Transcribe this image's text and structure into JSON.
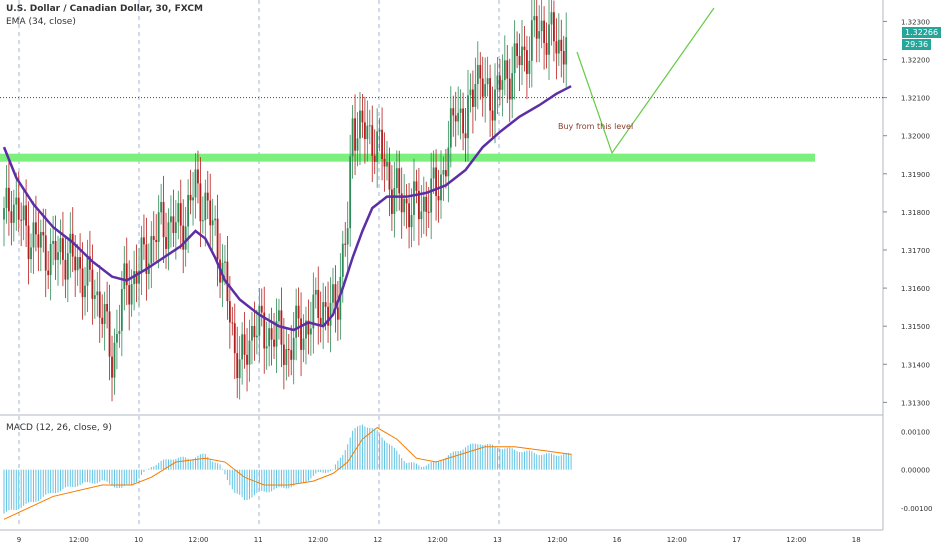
{
  "header": {
    "title": "U.S. Dollar / Canadian Dollar, 30, FXCM",
    "indicator": "EMA (34, close)",
    "macd_title": "MACD (12, 26, close, 9)"
  },
  "last_price": {
    "value": "1.32266",
    "countdown": "29:36",
    "color": "#26a69a"
  },
  "colors": {
    "up": "#2e8b57",
    "down": "#b71c1c",
    "ema": "#5b2ea6",
    "zone": "#7cf07c",
    "projection": "#66cc44",
    "macd_hist": "#5fc3e4",
    "signal": "#f57c00",
    "grid": "#cfd8e3"
  },
  "chart_data": [
    {
      "type": "candlestick",
      "title": "U.S. Dollar / Canadian Dollar, 30, FXCM",
      "ylim": [
        1.3128,
        1.3233
      ],
      "y_ticks": [
        "1.32300",
        "1.32200",
        "1.32100",
        "1.32000",
        "1.31900",
        "1.31800",
        "1.31700",
        "1.31600",
        "1.31500",
        "1.31400",
        "1.31300"
      ],
      "x_ticks": [
        "9",
        "12:00",
        "10",
        "12:00",
        "11",
        "12:00",
        "12",
        "12:00",
        "13",
        "12:00",
        "16",
        "12:00",
        "17",
        "12:00",
        "18"
      ],
      "ema": {
        "name": "EMA (34, close)",
        "points": [
          [
            0,
            1.3197
          ],
          [
            5,
            1.3189
          ],
          [
            12,
            1.3182
          ],
          [
            20,
            1.3176
          ],
          [
            28,
            1.3172
          ],
          [
            36,
            1.3167
          ],
          [
            44,
            1.3163
          ],
          [
            50,
            1.3162
          ],
          [
            58,
            1.3165
          ],
          [
            65,
            1.3168
          ],
          [
            72,
            1.3171
          ],
          [
            78,
            1.3175
          ],
          [
            82,
            1.3173
          ],
          [
            86,
            1.3168
          ],
          [
            90,
            1.3162
          ],
          [
            96,
            1.3157
          ],
          [
            104,
            1.3153
          ],
          [
            112,
            1.315
          ],
          [
            118,
            1.3149
          ],
          [
            124,
            1.3151
          ],
          [
            130,
            1.315
          ],
          [
            134,
            1.3153
          ],
          [
            138,
            1.316
          ],
          [
            142,
            1.3168
          ],
          [
            146,
            1.3175
          ],
          [
            150,
            1.3181
          ],
          [
            156,
            1.3184
          ],
          [
            164,
            1.3184
          ],
          [
            172,
            1.3185
          ],
          [
            180,
            1.3187
          ],
          [
            188,
            1.3191
          ],
          [
            195,
            1.3197
          ],
          [
            202,
            1.3201
          ],
          [
            210,
            1.3205
          ],
          [
            218,
            1.3208
          ],
          [
            225,
            1.3211
          ],
          [
            231,
            1.3213
          ]
        ]
      },
      "candle_path": [
        [
          0,
          1.3178
        ],
        [
          3,
          1.3184
        ],
        [
          8,
          1.3176
        ],
        [
          14,
          1.3172
        ],
        [
          20,
          1.3168
        ],
        [
          24,
          1.317
        ],
        [
          30,
          1.3166
        ],
        [
          36,
          1.316
        ],
        [
          40,
          1.3155
        ],
        [
          44,
          1.314
        ],
        [
          48,
          1.3158
        ],
        [
          52,
          1.3162
        ],
        [
          58,
          1.3169
        ],
        [
          64,
          1.3177
        ],
        [
          70,
          1.3176
        ],
        [
          74,
          1.3178
        ],
        [
          78,
          1.3187
        ],
        [
          82,
          1.3181
        ],
        [
          86,
          1.3175
        ],
        [
          90,
          1.3161
        ],
        [
          94,
          1.3144
        ],
        [
          98,
          1.314
        ],
        [
          102,
          1.3152
        ],
        [
          106,
          1.3147
        ],
        [
          110,
          1.3149
        ],
        [
          116,
          1.3143
        ],
        [
          120,
          1.315
        ],
        [
          124,
          1.3149
        ],
        [
          128,
          1.3157
        ],
        [
          132,
          1.3152
        ],
        [
          136,
          1.3159
        ],
        [
          140,
          1.3176
        ],
        [
          142,
          1.3204
        ],
        [
          146,
          1.3201
        ],
        [
          150,
          1.32
        ],
        [
          154,
          1.3195
        ],
        [
          158,
          1.3186
        ],
        [
          162,
          1.3183
        ],
        [
          166,
          1.3181
        ],
        [
          170,
          1.3182
        ],
        [
          174,
          1.3184
        ],
        [
          178,
          1.3189
        ],
        [
          181,
          1.3195
        ],
        [
          184,
          1.321
        ],
        [
          188,
          1.32
        ],
        [
          192,
          1.3218
        ],
        [
          196,
          1.321
        ],
        [
          200,
          1.3211
        ],
        [
          204,
          1.3215
        ],
        [
          208,
          1.3219
        ],
        [
          212,
          1.3221
        ],
        [
          216,
          1.3227
        ],
        [
          220,
          1.3228
        ],
        [
          224,
          1.3225
        ],
        [
          227,
          1.3223
        ],
        [
          229,
          1.3226
        ]
      ],
      "annotation": "Buy from this level",
      "zone": [
        1.31935,
        1.31945
      ],
      "dotted_line": 1.321
    },
    {
      "type": "macd",
      "title": "MACD (12, 26, close, 9)",
      "ylim": [
        -0.0015,
        0.0013
      ],
      "y_ticks": [
        "0.00100",
        "0.00000",
        "-0.00100"
      ],
      "macd_points": [
        [
          0,
          -0.00115
        ],
        [
          10,
          -0.0009
        ],
        [
          20,
          -0.0006
        ],
        [
          30,
          -0.0004
        ],
        [
          40,
          -0.0003
        ],
        [
          48,
          -0.0005
        ],
        [
          54,
          -0.0003
        ],
        [
          60,
          0.0001
        ],
        [
          68,
          0.0003
        ],
        [
          76,
          0.0003
        ],
        [
          82,
          0.0004
        ],
        [
          88,
          0.0001
        ],
        [
          94,
          -0.0006
        ],
        [
          98,
          -0.0008
        ],
        [
          104,
          -0.0006
        ],
        [
          112,
          -0.0005
        ],
        [
          120,
          -0.0004
        ],
        [
          128,
          -0.0001
        ],
        [
          134,
          0.0
        ],
        [
          138,
          0.0004
        ],
        [
          142,
          0.001
        ],
        [
          146,
          0.0012
        ],
        [
          152,
          0.001
        ],
        [
          158,
          0.0006
        ],
        [
          164,
          0.0002
        ],
        [
          170,
          0.0001
        ],
        [
          176,
          0.0002
        ],
        [
          182,
          0.0004
        ],
        [
          188,
          0.0006
        ],
        [
          194,
          0.0007
        ],
        [
          200,
          0.0006
        ],
        [
          210,
          0.0005
        ],
        [
          220,
          0.0004
        ],
        [
          231,
          0.0004
        ]
      ],
      "signal_points": [
        [
          0,
          -0.0013
        ],
        [
          20,
          -0.0007
        ],
        [
          40,
          -0.0004
        ],
        [
          52,
          -0.0004
        ],
        [
          60,
          -0.0002
        ],
        [
          70,
          0.0002
        ],
        [
          82,
          0.0003
        ],
        [
          90,
          0.0002
        ],
        [
          98,
          -0.0002
        ],
        [
          106,
          -0.0004
        ],
        [
          116,
          -0.0004
        ],
        [
          126,
          -0.0003
        ],
        [
          134,
          -0.0001
        ],
        [
          140,
          0.0002
        ],
        [
          146,
          0.0008
        ],
        [
          152,
          0.0011
        ],
        [
          160,
          0.0008
        ],
        [
          168,
          0.0003
        ],
        [
          176,
          0.0002
        ],
        [
          186,
          0.0004
        ],
        [
          196,
          0.0006
        ],
        [
          208,
          0.0006
        ],
        [
          220,
          0.0005
        ],
        [
          231,
          0.0004
        ]
      ]
    }
  ]
}
